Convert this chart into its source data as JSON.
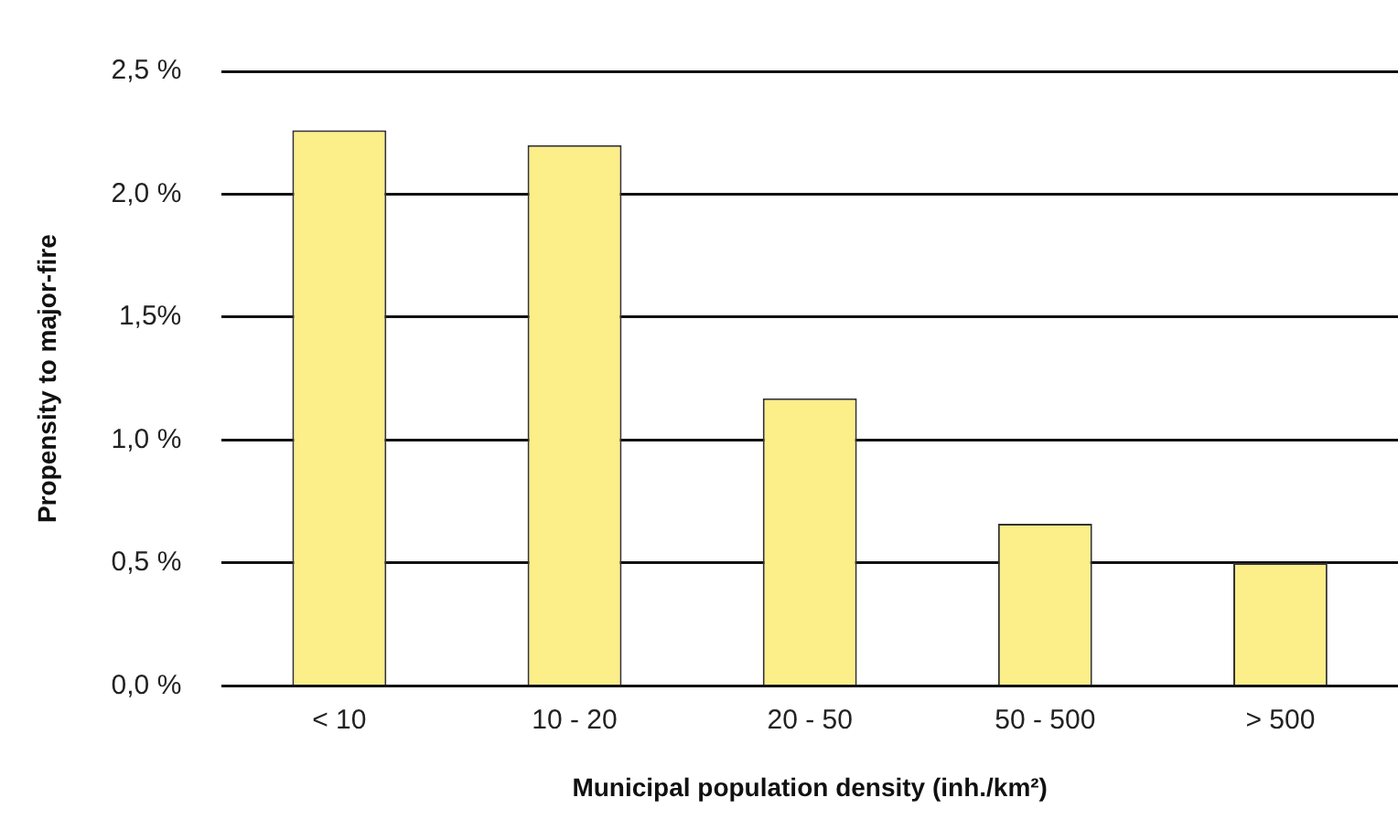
{
  "chart_data": {
    "type": "bar",
    "xlabel": "Municipal population density (inh./km²)",
    "ylabel": "Propensity to major-fire",
    "categories": [
      "< 10",
      "10 - 20",
      "20 - 50",
      "50 - 500",
      "> 500"
    ],
    "values": [
      2.26,
      2.2,
      1.17,
      0.66,
      0.5
    ],
    "color": "#fcee88",
    "ylim": [
      0,
      2.5
    ],
    "yticks": [
      {
        "value": 0,
        "label": "0,0 %"
      },
      {
        "value": 0.5,
        "label": "0,5 %"
      },
      {
        "value": 1,
        "label": "1,0 %"
      },
      {
        "value": 1.5,
        "label": "1,5%"
      },
      {
        "value": 2,
        "label": "2,0 %"
      },
      {
        "value": 2.5,
        "label": "2,5 %"
      }
    ],
    "grid": "y",
    "legend": false
  }
}
